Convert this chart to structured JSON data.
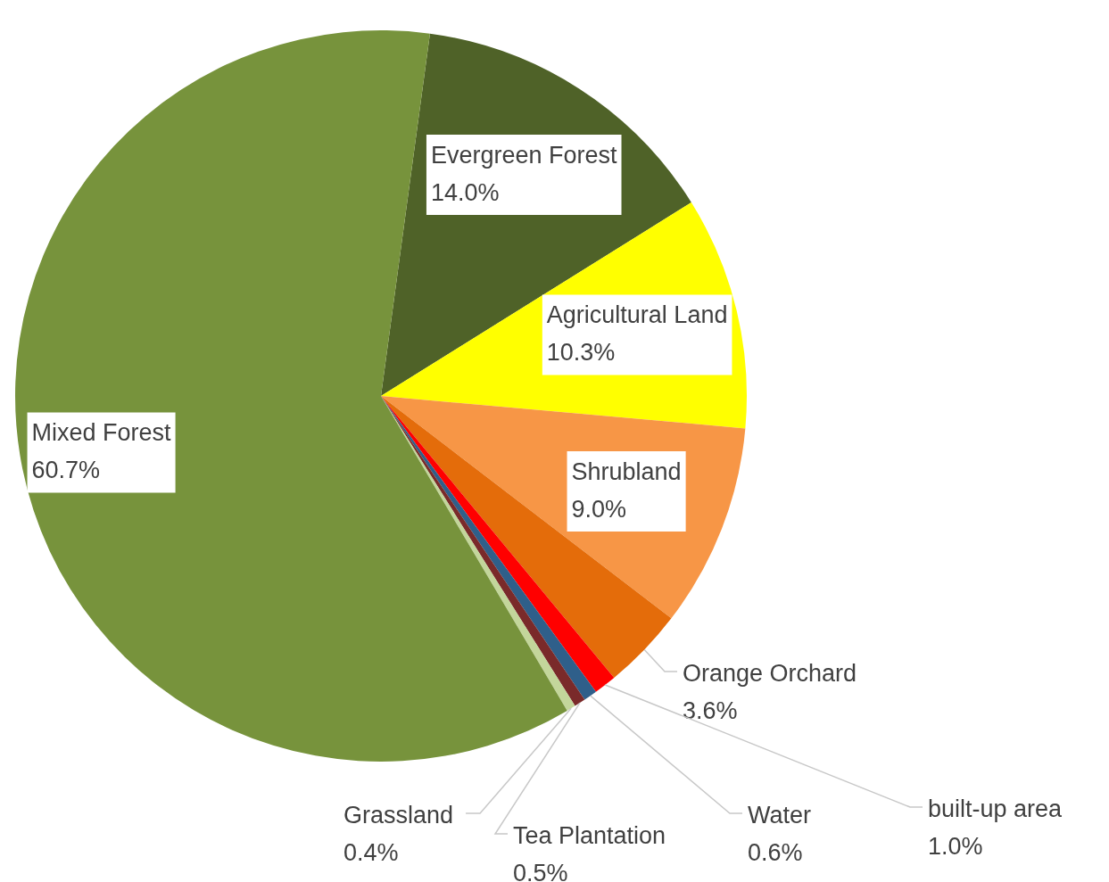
{
  "chart_data": {
    "type": "pie",
    "categories": [
      "Evergreen Forest",
      "Agricultural Land",
      "Shrubland",
      "Orange Orchard",
      "built-up area",
      "Water",
      "Tea Plantation",
      "Grassland",
      "Mixed Forest"
    ],
    "values": [
      14.0,
      10.3,
      9.0,
      3.6,
      1.0,
      0.6,
      0.5,
      0.4,
      60.7
    ],
    "value_labels": [
      "14.0%",
      "10.3%",
      "9.0%",
      "3.6%",
      "1.0%",
      "0.6%",
      "0.5%",
      "0.4%",
      "60.7%"
    ],
    "colors": [
      "#4f6228",
      "#ffff00",
      "#f79646",
      "#e46c0a",
      "#ff0000",
      "#2f5f8a",
      "#7a2a2a",
      "#c3d69b",
      "#77933c"
    ],
    "legend": false
  }
}
